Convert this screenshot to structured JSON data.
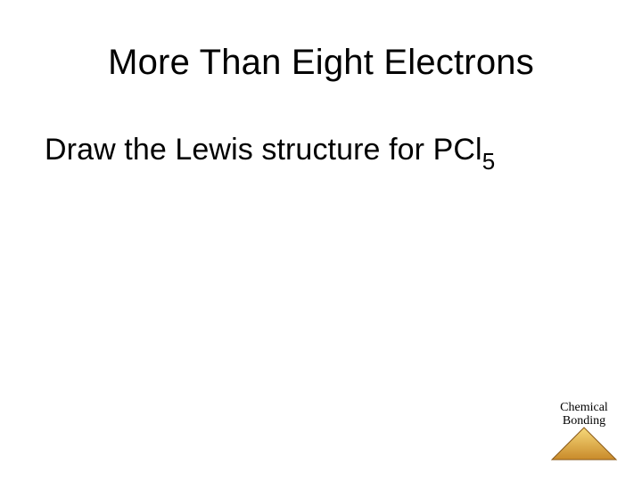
{
  "slide": {
    "title": "More Than Eight Electrons",
    "title_fontsize": 40,
    "title_color": "#000000",
    "prompt_prefix": "Draw the Lewis structure for ",
    "formula_base": "PCl",
    "formula_subscript": "5",
    "prompt_fontsize": 34,
    "prompt_color": "#000000",
    "subscript_fontsize": 26,
    "background_color": "#ffffff"
  },
  "badge": {
    "line1": "Chemical",
    "line2": "Bonding",
    "text_fontsize": 14,
    "text_color": "#000000",
    "triangle_width": 76,
    "triangle_height": 40,
    "fill_top": "#f6d97a",
    "fill_bottom": "#c98a2a",
    "stroke": "#8a5a1a"
  }
}
